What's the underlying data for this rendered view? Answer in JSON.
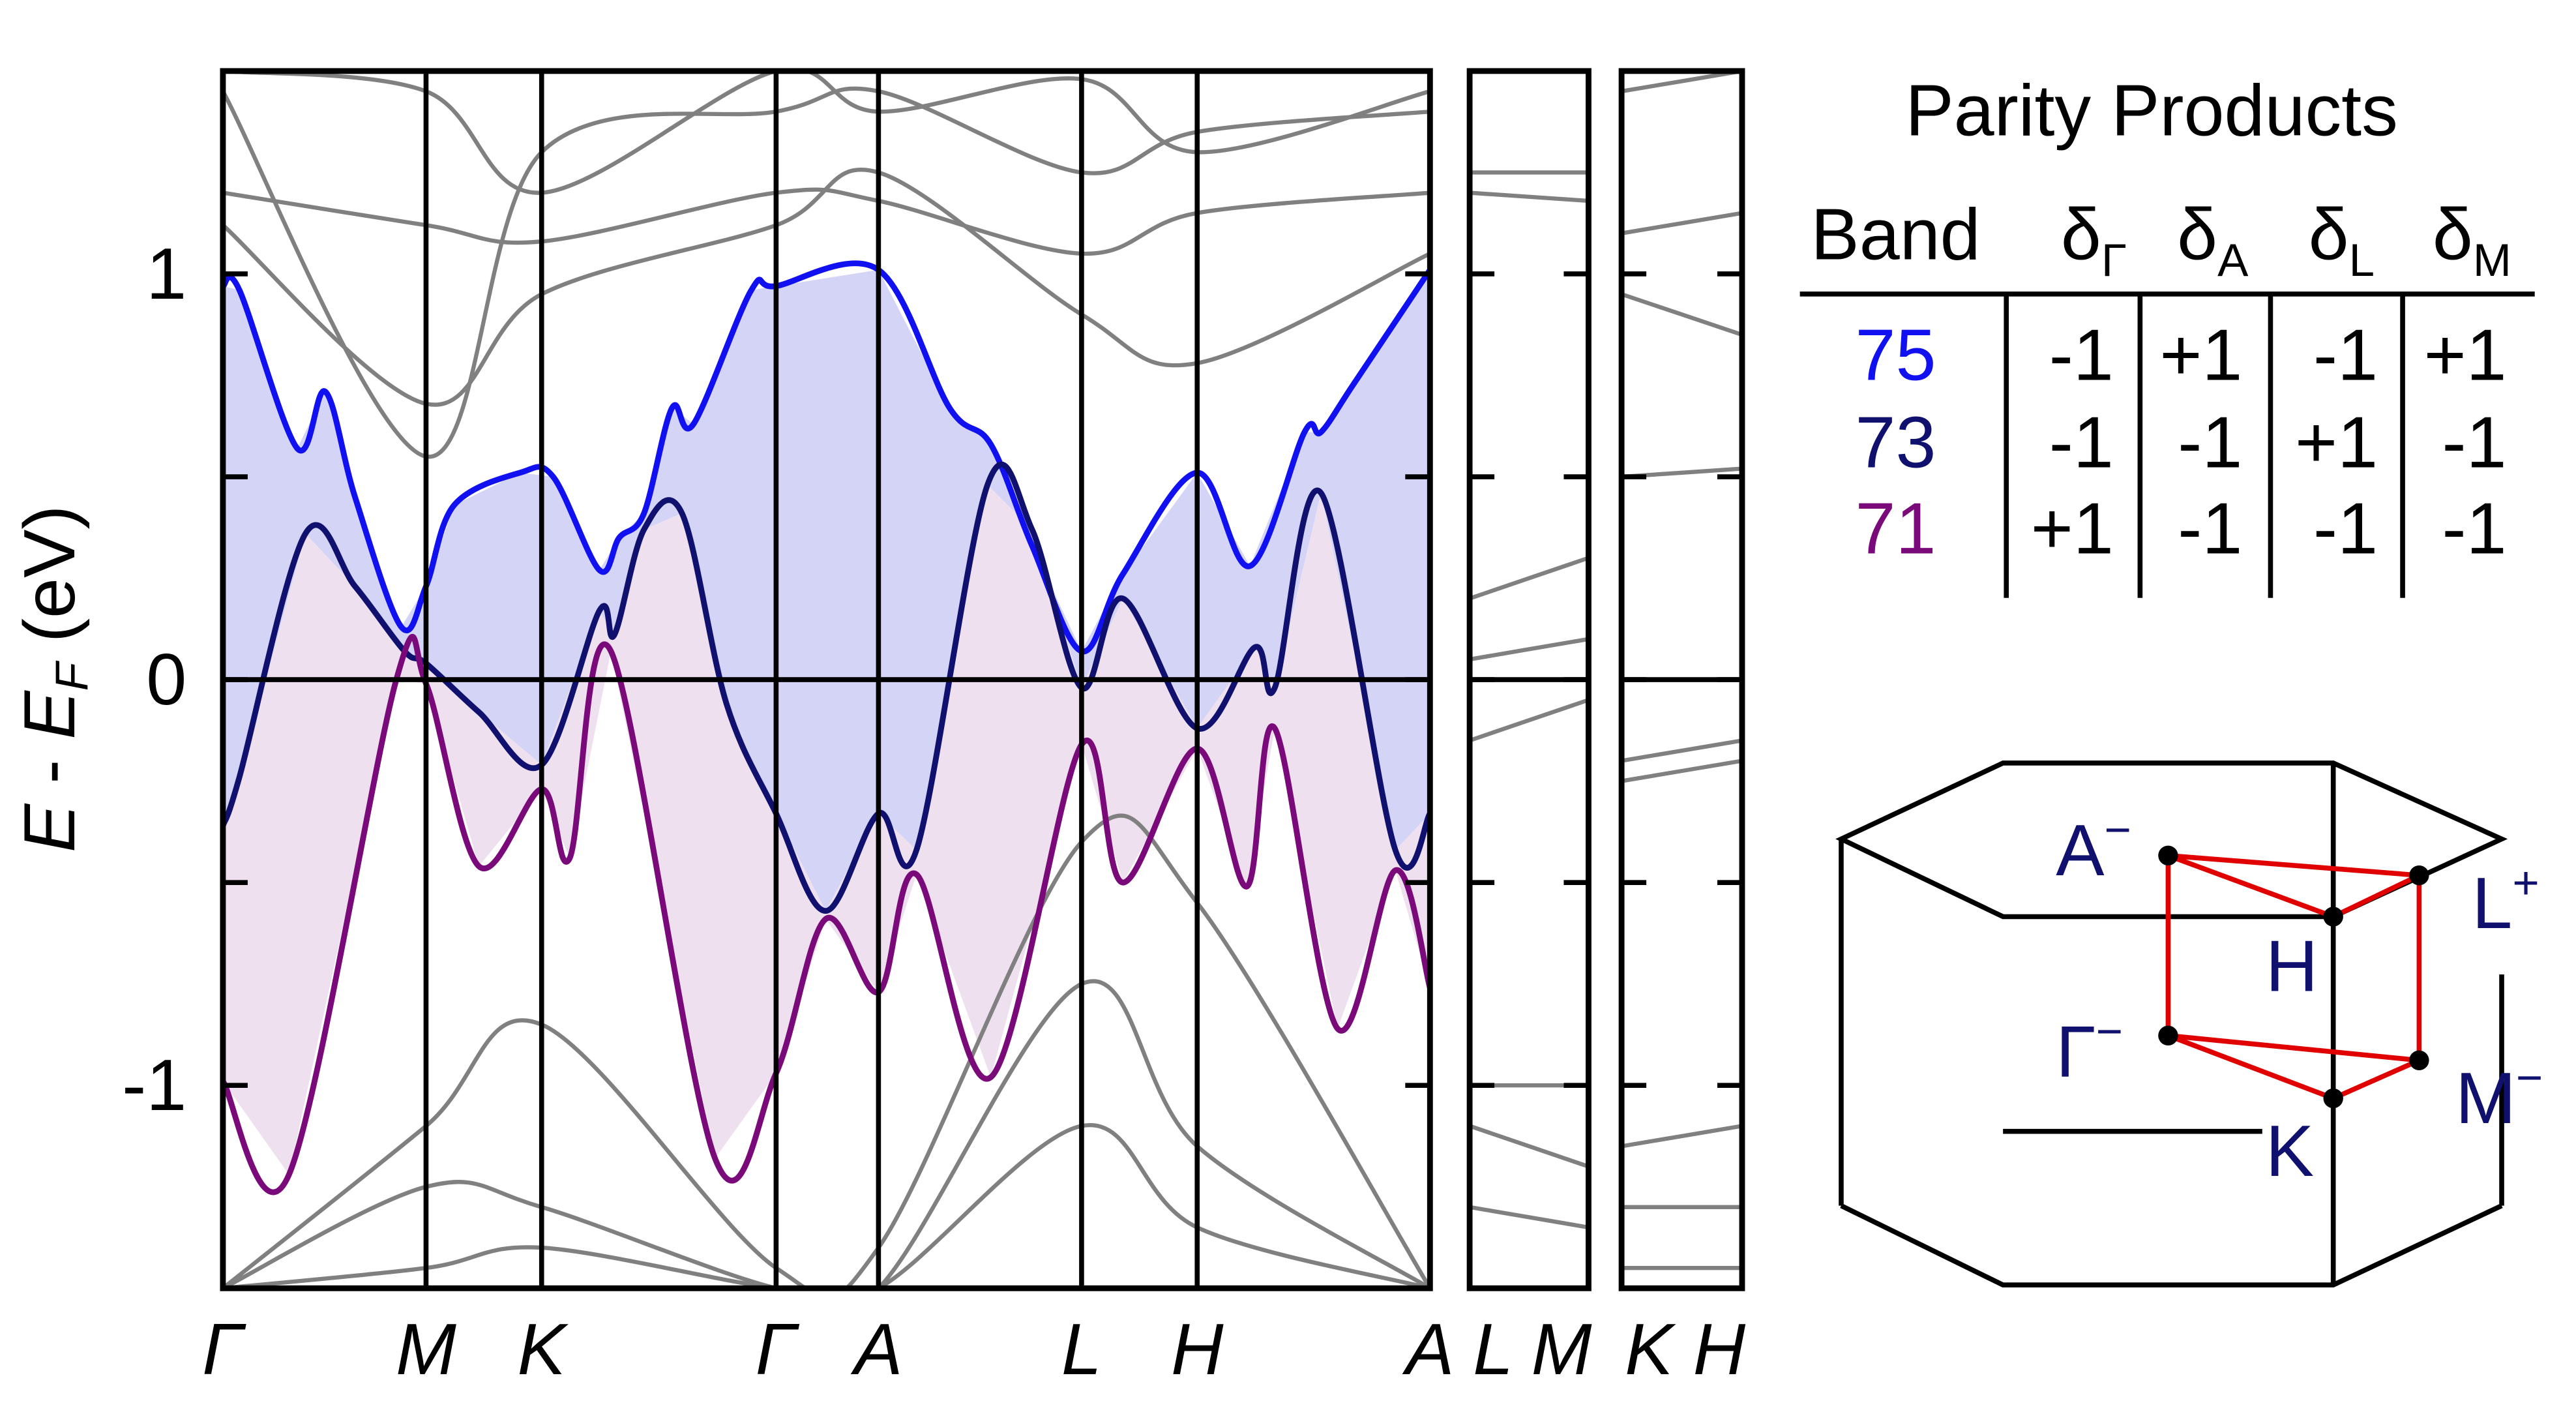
{
  "chart_data": [
    {
      "type": "line",
      "ylabel": [
        "E",
        " - ",
        "E",
        "F",
        " (eV)"
      ],
      "xlim": [
        0,
        7.31
      ],
      "ylim": [
        -1.5,
        1.5
      ],
      "yticks": [
        -1,
        0,
        1
      ],
      "minor_yticks": [
        -0.5,
        0.5
      ],
      "zero_line": true,
      "xticks": [
        {
          "value": 0,
          "label": "Γ"
        },
        {
          "value": 1.23,
          "label": "M"
        },
        {
          "value": 1.93,
          "label": "K"
        },
        {
          "value": 3.35,
          "label": "Γ"
        },
        {
          "value": 3.97,
          "label": "A"
        },
        {
          "value": 5.2,
          "label": "L"
        },
        {
          "value": 5.9,
          "label": "H"
        },
        {
          "value": 7.31,
          "label": "A"
        }
      ],
      "series": [
        {
          "color": "#808080",
          "x": [
            0,
            1.23,
            1.93,
            3.35,
            3.97,
            5.2,
            5.9,
            7.31
          ],
          "values": [
            1.2,
            1.12,
            1.08,
            1.2,
            1.18,
            1.05,
            1.15,
            1.2
          ]
        },
        {
          "color": "#808080",
          "x": [
            0,
            1.23,
            1.93,
            3.35,
            3.97,
            5.2,
            5.9,
            7.31
          ],
          "values": [
            1.12,
            0.68,
            0.95,
            1.12,
            1.25,
            0.9,
            0.78,
            1.05
          ]
        },
        {
          "color": "#808080",
          "x": [
            0,
            1.23,
            1.93,
            3.35,
            3.97,
            5.2,
            5.9,
            7.31
          ],
          "values": [
            1.45,
            0.55,
            1.3,
            1.4,
            1.45,
            1.25,
            1.35,
            1.4
          ]
        },
        {
          "color": "#808080",
          "x": [
            0,
            1.23,
            1.93,
            3.35,
            3.97,
            5.2,
            5.9,
            7.31
          ],
          "values": [
            1.5,
            1.45,
            1.2,
            1.5,
            1.4,
            1.48,
            1.3,
            1.45
          ]
        },
        {
          "color": "#808080",
          "x": [
            0,
            1.23,
            1.93,
            3.35,
            3.97,
            5.2,
            5.9,
            7.31
          ],
          "values": [
            -1.5,
            -1.1,
            -0.85,
            -1.45,
            -1.4,
            -0.4,
            -0.55,
            -1.5
          ]
        },
        {
          "color": "#808080",
          "x": [
            0,
            1.23,
            1.93,
            3.35,
            3.97,
            5.2,
            5.9,
            7.31
          ],
          "values": [
            -1.5,
            -1.25,
            -1.3,
            -1.5,
            -1.5,
            -0.75,
            -1.15,
            -1.5
          ]
        },
        {
          "color": "#808080",
          "x": [
            0,
            1.23,
            1.93,
            3.35,
            3.97,
            5.2,
            5.9,
            7.31
          ],
          "values": [
            -1.5,
            -1.45,
            -1.4,
            -1.5,
            -1.5,
            -1.1,
            -1.35,
            -1.5
          ]
        },
        {
          "color": "#1010f0",
          "fill": "#d4d4f7",
          "x": [
            0,
            0.1,
            0.45,
            0.62,
            0.8,
            1.08,
            1.23,
            1.4,
            1.8,
            2.0,
            2.28,
            2.4,
            2.55,
            2.72,
            2.85,
            3.2,
            3.35,
            3.97,
            4.4,
            4.65,
            4.9,
            5.2,
            5.45,
            5.9,
            6.22,
            6.55,
            6.65,
            6.85,
            7.31
          ],
          "values": [
            0.97,
            0.96,
            0.57,
            0.71,
            0.45,
            0.13,
            0.23,
            0.43,
            0.51,
            0.5,
            0.27,
            0.35,
            0.41,
            0.67,
            0.63,
            0.96,
            0.97,
            1.01,
            0.67,
            0.58,
            0.33,
            0.07,
            0.26,
            0.51,
            0.28,
            0.61,
            0.61,
            0.73,
            1.01
          ]
        },
        {
          "color": "#10106e",
          "fill": "#eee0ee",
          "x": [
            0,
            0.1,
            0.5,
            0.8,
            1.1,
            1.23,
            1.55,
            1.93,
            2.28,
            2.37,
            2.55,
            2.78,
            3.05,
            3.35,
            3.65,
            3.97,
            4.2,
            4.63,
            4.9,
            5.2,
            5.45,
            5.9,
            6.25,
            6.37,
            6.65,
            7.1,
            7.31
          ],
          "values": [
            -0.36,
            -0.24,
            0.36,
            0.23,
            0.07,
            0.04,
            -0.08,
            -0.21,
            0.17,
            0.11,
            0.37,
            0.41,
            -0.06,
            -0.33,
            -0.57,
            -0.33,
            -0.42,
            0.48,
            0.37,
            -0.02,
            0.2,
            -0.12,
            0.08,
            -0.02,
            0.46,
            -0.42,
            -0.33
          ]
        },
        {
          "color": "#7a0a7a",
          "x": [
            0,
            0.4,
            1.05,
            1.23,
            1.55,
            1.93,
            2.1,
            2.35,
            2.98,
            3.35,
            3.65,
            3.97,
            4.2,
            4.65,
            5.2,
            5.45,
            5.9,
            6.2,
            6.37,
            6.75,
            7.1,
            7.31
          ],
          "values": [
            -0.99,
            -1.22,
            0.0,
            -0.01,
            -0.46,
            -0.27,
            -0.44,
            0.07,
            -1.18,
            -0.97,
            -0.59,
            -0.77,
            -0.48,
            -0.98,
            -0.16,
            -0.5,
            -0.17,
            -0.51,
            -0.12,
            -0.86,
            -0.47,
            -0.76
          ]
        }
      ]
    },
    {
      "type": "line",
      "xlim": [
        0,
        0.72
      ],
      "ylim": [
        -1.5,
        1.5
      ],
      "ytick_marks": [
        -1,
        -0.5,
        0,
        0.5,
        1
      ],
      "zero_line": true,
      "xticks": [
        {
          "value": 0,
          "label": "L"
        },
        {
          "value": 0.72,
          "label": "M"
        }
      ],
      "series": [
        {
          "color": "#808080",
          "x": [
            0,
            0.72
          ],
          "values": [
            1.2,
            1.18
          ]
        },
        {
          "color": "#808080",
          "x": [
            0,
            0.72
          ],
          "values": [
            1.25,
            1.25
          ]
        },
        {
          "color": "#808080",
          "x": [
            0,
            0.72
          ],
          "values": [
            0.2,
            0.3
          ]
        },
        {
          "color": "#808080",
          "x": [
            0,
            0.72
          ],
          "values": [
            0.05,
            0.1
          ]
        },
        {
          "color": "#808080",
          "x": [
            0,
            0.72
          ],
          "values": [
            -0.15,
            -0.05
          ]
        },
        {
          "color": "#808080",
          "x": [
            0,
            0.72
          ],
          "values": [
            -1.0,
            -1.0
          ]
        },
        {
          "color": "#808080",
          "x": [
            0,
            0.72
          ],
          "values": [
            -1.1,
            -1.2
          ]
        },
        {
          "color": "#808080",
          "x": [
            0,
            0.72
          ],
          "values": [
            -1.3,
            -1.35
          ]
        }
      ]
    },
    {
      "type": "line",
      "xlim": [
        0,
        0.73
      ],
      "ylim": [
        -1.5,
        1.5
      ],
      "ytick_marks": [
        -1,
        -0.5,
        0,
        0.5,
        1
      ],
      "zero_line": true,
      "xticks": [
        {
          "value": 0,
          "label": "K"
        },
        {
          "value": 0.73,
          "label": "H"
        }
      ],
      "series": [
        {
          "color": "#808080",
          "x": [
            0,
            0.73
          ],
          "values": [
            1.45,
            1.5
          ]
        },
        {
          "color": "#808080",
          "x": [
            0,
            0.73
          ],
          "values": [
            1.1,
            1.15
          ]
        },
        {
          "color": "#808080",
          "x": [
            0,
            0.73
          ],
          "values": [
            0.95,
            0.85
          ]
        },
        {
          "color": "#808080",
          "x": [
            0,
            0.73
          ],
          "values": [
            0.5,
            0.52
          ]
        },
        {
          "color": "#808080",
          "x": [
            0,
            0.73
          ],
          "values": [
            -0.2,
            -0.15
          ]
        },
        {
          "color": "#808080",
          "x": [
            0,
            0.73
          ],
          "values": [
            -0.25,
            -0.2
          ]
        },
        {
          "color": "#808080",
          "x": [
            0,
            0.73
          ],
          "values": [
            -1.15,
            -1.1
          ]
        },
        {
          "color": "#808080",
          "x": [
            0,
            0.73
          ],
          "values": [
            -1.3,
            -1.3
          ]
        },
        {
          "color": "#808080",
          "x": [
            0,
            0.73
          ],
          "values": [
            -1.45,
            -1.45
          ]
        }
      ]
    }
  ],
  "table": {
    "title": "Parity Products",
    "header": [
      {
        "text": "Band"
      },
      {
        "text": "δ",
        "sub": "Γ"
      },
      {
        "text": "δ",
        "sub": "A"
      },
      {
        "text": "δ",
        "sub": "L"
      },
      {
        "text": "δ",
        "sub": "M"
      }
    ],
    "rows": [
      [
        "75",
        "-1",
        "+1",
        "-1",
        "+1"
      ],
      [
        "73",
        "-1",
        "-1",
        "+1",
        "-1"
      ],
      [
        "71",
        "+1",
        "-1",
        "-1",
        "-1"
      ]
    ],
    "row_colors": [
      "#1010f0",
      "#10106e",
      "#7a0a7a"
    ]
  },
  "brillouin_zone": {
    "labels": [
      {
        "text": "A",
        "sup": "−"
      },
      {
        "text": "L",
        "sup": "+"
      },
      {
        "text": "H"
      },
      {
        "text": "Γ",
        "sup": "−"
      },
      {
        "text": "M",
        "sup": "−"
      },
      {
        "text": "K"
      }
    ]
  }
}
